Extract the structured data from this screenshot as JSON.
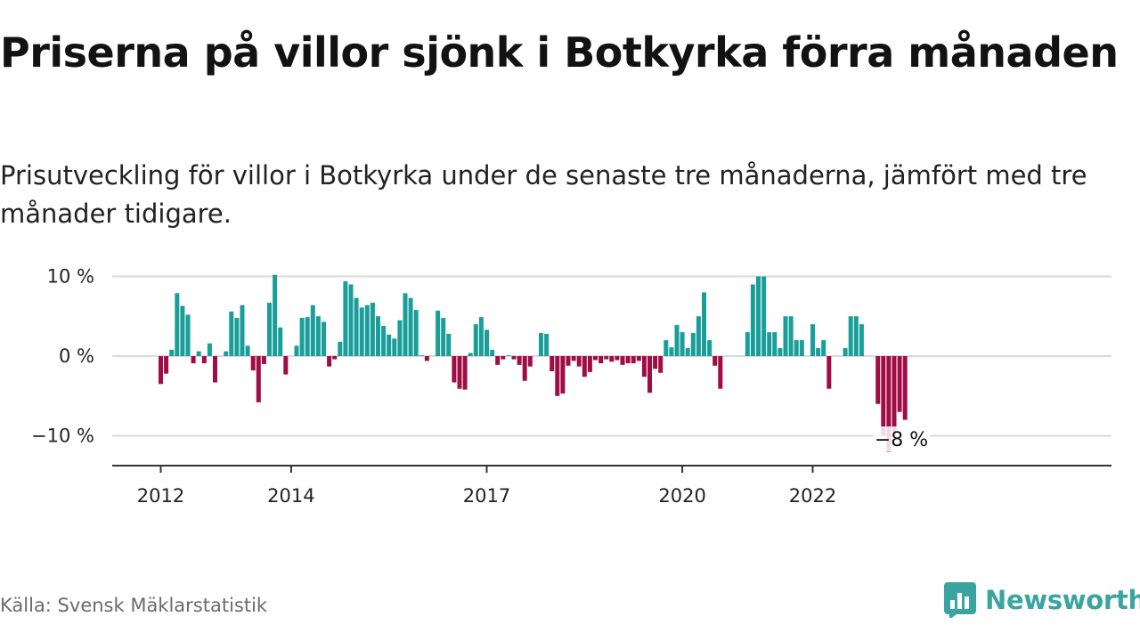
{
  "title": "Priserna på villor sjönk i Botkyrka förra månaden",
  "subtitle": "Prisutveckling för villor i Botkyrka under de senaste tre månaderna, jämfört med tre månader tidigare.",
  "source": "Källa: Svensk Mäklarstatistik",
  "brand": {
    "name": "Newsworthy",
    "icon": "newsworthy-logo-icon",
    "color": "#3aa5a0"
  },
  "chart_data": {
    "type": "bar",
    "ylabel": "",
    "xlabel": "",
    "ylim": [
      -13.5,
      11
    ],
    "yticks": [
      10,
      0,
      -10
    ],
    "ytick_labels": [
      "10 %",
      "0 %",
      "−10 %"
    ],
    "x_start": "2012-01",
    "xticks": [
      {
        "label": "2012",
        "month": "2012-01"
      },
      {
        "label": "2014",
        "month": "2014-01"
      },
      {
        "label": "2017",
        "month": "2017-01"
      },
      {
        "label": "2020",
        "month": "2020-01"
      },
      {
        "label": "2022",
        "month": "2022-01"
      }
    ],
    "colors": {
      "positive": "#1a9e9a",
      "negative": "#a00d45"
    },
    "grid": true,
    "end_label": "−8 %",
    "values": [
      -3.5,
      -2.2,
      0.8,
      7.9,
      6.3,
      5.2,
      -0.9,
      0.6,
      -0.9,
      1.6,
      -3.3,
      0,
      0.6,
      5.6,
      4.8,
      6.4,
      1.3,
      -1.8,
      -5.8,
      -1.0,
      6.7,
      10.2,
      3.6,
      -2.3,
      0,
      1.3,
      4.8,
      4.9,
      6.4,
      5.0,
      4.3,
      -1.3,
      -0.4,
      1.8,
      9.4,
      9.0,
      7.3,
      6.1,
      6.4,
      6.7,
      5.0,
      3.8,
      2.7,
      2.2,
      4.5,
      7.9,
      7.3,
      5.8,
      0.1,
      -0.6,
      0,
      5.7,
      4.8,
      2.8,
      -3.3,
      -4.1,
      -4.2,
      0.4,
      4.0,
      4.9,
      3.3,
      0.8,
      -1.1,
      -0.4,
      0.1,
      -0.4,
      -1.1,
      -3.1,
      -1.3,
      0,
      2.9,
      2.8,
      -1.9,
      -5.0,
      -4.7,
      -1.2,
      -0.6,
      -1.3,
      -2.6,
      -2.0,
      -0.5,
      -0.9,
      -0.4,
      -0.7,
      -0.5,
      -1.1,
      -0.9,
      -0.9,
      -0.6,
      -2.6,
      -4.6,
      -1.6,
      -2.1,
      2.0,
      1.1,
      3.9,
      3.0,
      1.0,
      2.9,
      5.0,
      8.0,
      2.0,
      -1.2,
      -4.1,
      0,
      0,
      0,
      0,
      3.0,
      9.0,
      10.0,
      10.0,
      3.0,
      3.0,
      1.0,
      5.0,
      5.0,
      2.0,
      2.0,
      0,
      4.0,
      1.0,
      2.0,
      -4.1,
      0,
      0,
      1.0,
      5.0,
      5.0,
      4.0,
      0,
      0,
      -6.0,
      -10.0,
      -12.0,
      -9.5,
      -7.0,
      -8.0
    ]
  }
}
